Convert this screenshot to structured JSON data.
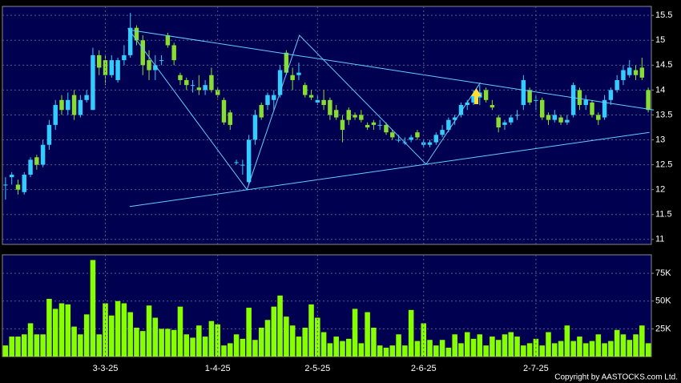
{
  "chart_data": [
    {
      "type": "candlestick",
      "up_color": "#33ccff",
      "down_color": "#88dd33",
      "line_color": "#66ccff",
      "grid": true,
      "open": [
        12.1,
        12.25,
        12.1,
        11.95,
        12.3,
        12.65,
        12.5,
        12.9,
        13.3,
        13.8,
        13.6,
        13.9,
        13.5,
        13.8,
        13.6,
        14.7,
        14.6,
        14.3,
        14.2,
        14.6,
        14.7,
        15.25,
        15.0,
        14.6,
        14.4,
        14.6,
        15.1,
        14.9,
        14.3,
        14.2,
        14.1,
        14.05,
        14.0,
        14.3,
        14.0,
        13.8,
        13.55,
        12.55,
        12.5,
        12.15,
        13.0,
        13.7,
        13.7,
        13.8,
        13.9,
        14.75,
        14.3,
        14.3,
        14.1,
        13.9,
        13.75,
        13.8,
        13.8,
        13.6,
        13.4,
        13.6,
        13.5,
        13.5,
        13.3,
        13.35,
        13.3,
        13.3,
        13.15,
        13.0,
        12.95,
        13.0,
        13.15,
        12.9,
        12.9,
        12.95,
        13.1,
        13.2,
        13.4,
        13.5,
        13.7,
        13.75,
        13.85,
        14.0,
        13.7,
        13.45,
        13.3,
        13.35,
        13.5,
        13.7,
        14.0,
        13.8,
        13.8,
        13.5,
        13.4,
        13.45,
        13.35,
        13.5,
        14.0,
        13.7,
        13.75,
        13.5,
        13.45,
        13.8,
        14.0,
        14.2,
        14.3,
        14.4,
        14.45,
        14.0
      ],
      "high": [
        12.25,
        12.35,
        12.2,
        12.35,
        12.65,
        12.7,
        13.0,
        13.4,
        13.8,
        13.9,
        13.95,
        14.0,
        13.9,
        14.0,
        14.85,
        14.8,
        14.7,
        14.7,
        14.65,
        14.9,
        15.55,
        15.3,
        15.1,
        14.8,
        14.7,
        14.7,
        15.15,
        14.95,
        14.35,
        14.25,
        14.2,
        14.3,
        14.2,
        14.45,
        14.05,
        13.85,
        13.6,
        12.6,
        12.6,
        13.1,
        13.6,
        13.75,
        13.95,
        14.0,
        14.5,
        14.8,
        14.45,
        14.55,
        14.15,
        14.0,
        13.9,
        14.0,
        13.85,
        13.7,
        13.5,
        13.65,
        13.55,
        13.6,
        13.35,
        13.4,
        13.4,
        13.35,
        13.2,
        13.1,
        13.05,
        13.1,
        13.2,
        13.0,
        13.0,
        13.15,
        13.3,
        13.45,
        13.5,
        13.75,
        13.8,
        14.0,
        14.1,
        14.05,
        13.8,
        13.5,
        13.4,
        13.5,
        13.6,
        14.3,
        14.05,
        13.9,
        13.85,
        13.55,
        13.6,
        13.5,
        13.5,
        14.15,
        14.05,
        13.9,
        13.8,
        13.55,
        13.9,
        14.05,
        14.3,
        14.5,
        14.6,
        14.5,
        14.65,
        14.05
      ],
      "low": [
        11.8,
        12.1,
        11.9,
        11.9,
        12.25,
        12.4,
        12.45,
        12.8,
        13.2,
        13.5,
        13.5,
        13.4,
        13.45,
        13.75,
        13.6,
        14.3,
        14.1,
        14.25,
        14.15,
        14.5,
        14.65,
        14.9,
        14.3,
        14.2,
        14.2,
        14.5,
        14.85,
        14.5,
        14.1,
        14.0,
        13.95,
        13.9,
        13.9,
        13.95,
        13.85,
        13.3,
        13.2,
        12.5,
        12.3,
        12.1,
        12.9,
        13.4,
        13.6,
        13.6,
        13.85,
        14.3,
        14.0,
        14.2,
        13.85,
        13.8,
        13.7,
        13.6,
        13.4,
        13.4,
        12.95,
        13.3,
        13.4,
        13.35,
        13.2,
        13.2,
        13.2,
        13.1,
        13.0,
        12.95,
        12.9,
        12.95,
        13.0,
        12.85,
        12.85,
        12.9,
        13.05,
        13.15,
        13.3,
        13.45,
        13.6,
        13.7,
        13.7,
        13.75,
        13.6,
        13.15,
        13.2,
        13.3,
        13.4,
        13.6,
        13.7,
        13.6,
        13.4,
        13.3,
        13.35,
        13.3,
        13.3,
        13.45,
        13.6,
        13.6,
        13.45,
        13.3,
        13.4,
        13.7,
        13.95,
        14.1,
        14.25,
        14.2,
        14.2,
        13.55
      ],
      "close": [
        12.1,
        12.3,
        12.0,
        12.3,
        12.6,
        12.5,
        12.9,
        13.3,
        13.7,
        13.6,
        13.8,
        13.5,
        13.8,
        13.9,
        14.7,
        14.45,
        14.3,
        14.6,
        14.6,
        14.7,
        15.25,
        15.0,
        14.5,
        14.4,
        14.5,
        14.6,
        14.9,
        14.6,
        14.2,
        14.1,
        14.1,
        14.0,
        14.1,
        14.0,
        13.9,
        13.35,
        13.3,
        12.55,
        12.5,
        13.0,
        13.5,
        13.45,
        13.9,
        13.9,
        14.4,
        14.35,
        14.2,
        14.35,
        13.9,
        13.85,
        13.8,
        13.7,
        13.5,
        13.45,
        13.2,
        13.4,
        13.45,
        13.4,
        13.25,
        13.3,
        13.3,
        13.15,
        13.05,
        13.0,
        12.95,
        13.05,
        13.05,
        12.95,
        12.95,
        13.1,
        13.2,
        13.4,
        13.45,
        13.7,
        13.75,
        13.9,
        13.95,
        13.8,
        13.65,
        13.25,
        13.35,
        13.45,
        13.5,
        14.2,
        13.75,
        13.8,
        13.45,
        13.4,
        13.5,
        13.35,
        13.4,
        14.1,
        13.7,
        13.8,
        13.5,
        13.4,
        13.8,
        14.0,
        14.2,
        14.4,
        14.45,
        14.3,
        14.25,
        13.6
      ],
      "ylim": [
        10.9,
        15.68
      ],
      "yticks": [
        11,
        11.5,
        12,
        12.5,
        13,
        13.5,
        14,
        14.5,
        15,
        15.5
      ],
      "trendlines": [
        {
          "x": [
            19.9,
            103.2
          ],
          "y": [
            11.66,
            13.15
          ]
        },
        {
          "x": [
            20.3,
            103.9
          ],
          "y": [
            15.2,
            13.6
          ]
        },
        {
          "x": [
            19.6,
            38.7,
            47.1,
            67.4,
            76.1
          ],
          "y": [
            15.24,
            12.0,
            15.1,
            12.51,
            14.15
          ]
        }
      ]
    },
    {
      "type": "bar",
      "color": "#88ff00",
      "grid": true,
      "categories": [
        null,
        null,
        null,
        null,
        null,
        null,
        null,
        null,
        null,
        null,
        null,
        null,
        null,
        null,
        null,
        null,
        "3-3-25",
        null,
        null,
        null,
        null,
        null,
        null,
        null,
        null,
        null,
        null,
        null,
        null,
        null,
        null,
        null,
        null,
        null,
        "1-4-25",
        null,
        null,
        null,
        null,
        null,
        null,
        null,
        null,
        null,
        null,
        null,
        null,
        null,
        null,
        null,
        "2-5-25",
        null,
        null,
        null,
        null,
        null,
        null,
        null,
        null,
        null,
        null,
        null,
        null,
        null,
        null,
        null,
        null,
        "2-6-25",
        null,
        null,
        null,
        null,
        null,
        null,
        null,
        null,
        null,
        null,
        null,
        null,
        null,
        null,
        null,
        null,
        null,
        "2-7-25",
        null,
        null,
        null,
        null,
        null,
        null,
        null,
        null,
        null,
        null,
        null,
        null,
        null,
        null,
        null,
        null,
        null,
        null
      ],
      "values": [
        10000,
        18000,
        18000,
        20000,
        30000,
        20000,
        20000,
        52000,
        43000,
        48000,
        47000,
        27000,
        20000,
        38000,
        87000,
        20000,
        48000,
        37000,
        50000,
        48000,
        40000,
        26000,
        23000,
        46000,
        35000,
        25000,
        25000,
        24000,
        45000,
        20000,
        17000,
        28000,
        18000,
        32000,
        29000,
        10000,
        12000,
        20000,
        16000,
        44000,
        15000,
        26000,
        33000,
        45000,
        55000,
        36000,
        28000,
        18000,
        26000,
        47000,
        35000,
        22000,
        12000,
        18000,
        14000,
        16000,
        43000,
        12000,
        40000,
        26000,
        10000,
        8000,
        10000,
        20000,
        10000,
        42000,
        14000,
        30000,
        15000,
        10000,
        15000,
        8000,
        20000,
        12000,
        22000,
        16000,
        20000,
        10000,
        18000,
        15000,
        20000,
        22000,
        18000,
        10000,
        12000,
        16000,
        10000,
        22000,
        12000,
        14000,
        28000,
        14000,
        18000,
        12000,
        14000,
        20000,
        12000,
        14000,
        24000,
        20000,
        15000,
        20000,
        28000,
        12000
      ],
      "ylim": [
        0,
        91700
      ],
      "yticks": [
        {
          "value": 25000,
          "label": "25K"
        },
        {
          "value": 50000,
          "label": "50K"
        },
        {
          "value": 75000,
          "label": "75K"
        }
      ]
    }
  ],
  "copyright": "Copyright by AASTOCKS.com Ltd."
}
